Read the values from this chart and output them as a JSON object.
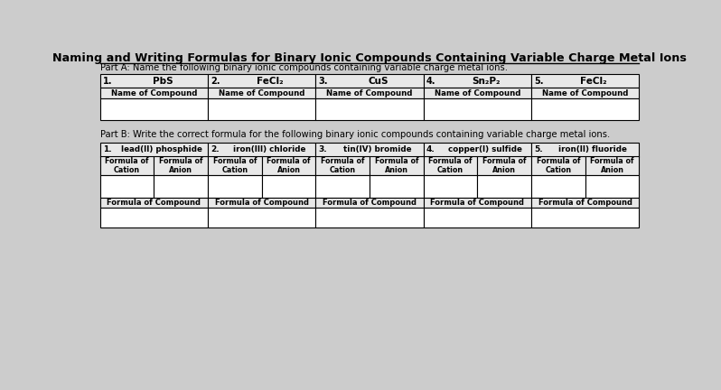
{
  "title": "Naming and Writing Formulas for Binary Ionic Compounds Containing Variable Charge Metal Ions",
  "part_a_label": "Part A: Name the following binary ionic compounds containing variable charge metal ions.",
  "part_b_label": "Part B: Write the correct formula for the following binary ionic compounds containing variable charge metal ions.",
  "part_a_compounds": [
    {
      "num": "1.",
      "formula": "PbS"
    },
    {
      "num": "2.",
      "formula": "FeCl₂"
    },
    {
      "num": "3.",
      "formula": "CuS"
    },
    {
      "num": "4.",
      "formula": "Sn₂P₂"
    },
    {
      "num": "5.",
      "formula": "FeCl₂"
    }
  ],
  "part_a_row_label": "Name of Compound",
  "part_b_compounds": [
    {
      "num": "1.",
      "name": "lead(II) phosphide"
    },
    {
      "num": "2.",
      "name": "iron(III) chloride"
    },
    {
      "num": "3.",
      "name": "tin(IV) bromide"
    },
    {
      "num": "4.",
      "name": "copper(I) sulfide"
    },
    {
      "num": "5.",
      "name": "iron(II) fluoride"
    }
  ],
  "part_b_sub_labels": [
    "Formula of\nCation",
    "Formula of\nAnion"
  ],
  "part_b_row_label": "Formula of Compound",
  "bg_color": "#cccccc",
  "header_bg": "#e8e8e8",
  "white": "#ffffff",
  "black": "#000000"
}
